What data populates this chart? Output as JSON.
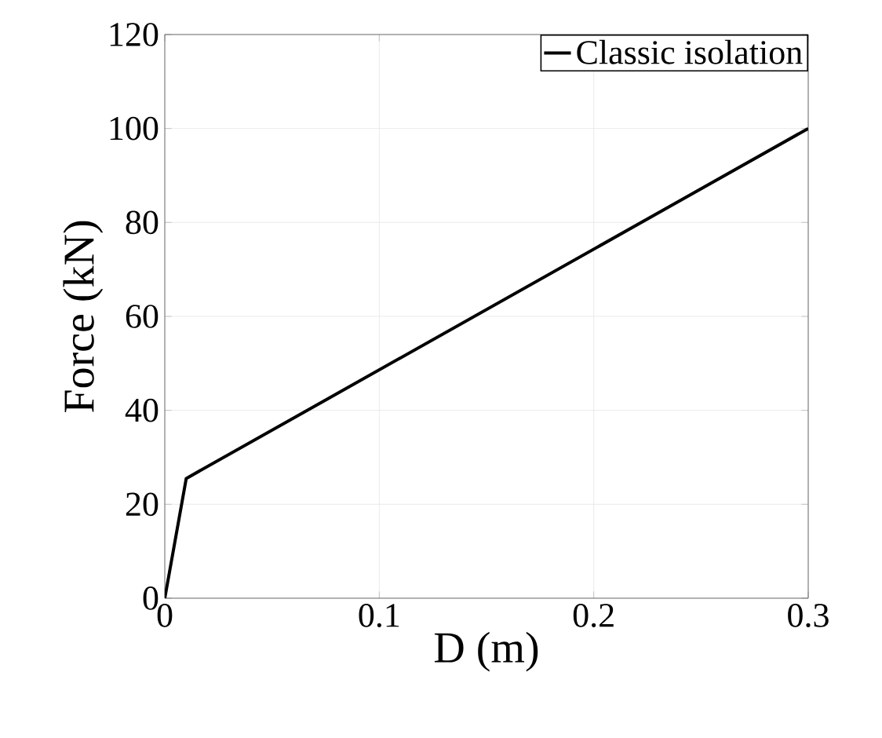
{
  "chart_data": {
    "type": "line",
    "xlabel": "D (m)",
    "ylabel": "Force (kN)",
    "x": [
      0,
      0.01,
      0.3
    ],
    "series": [
      {
        "name": "Classic isolation",
        "color": "#000000",
        "values": [
          0,
          25.5,
          100
        ]
      }
    ],
    "xlim": [
      0,
      0.3
    ],
    "xticks": [
      0,
      0.1,
      0.2,
      0.3
    ],
    "ylim": [
      0,
      120
    ],
    "yticks": [
      0,
      20,
      40,
      60,
      80,
      100,
      120
    ],
    "grid": true,
    "legend": "top right",
    "marker": "none",
    "line_style": "solid"
  }
}
